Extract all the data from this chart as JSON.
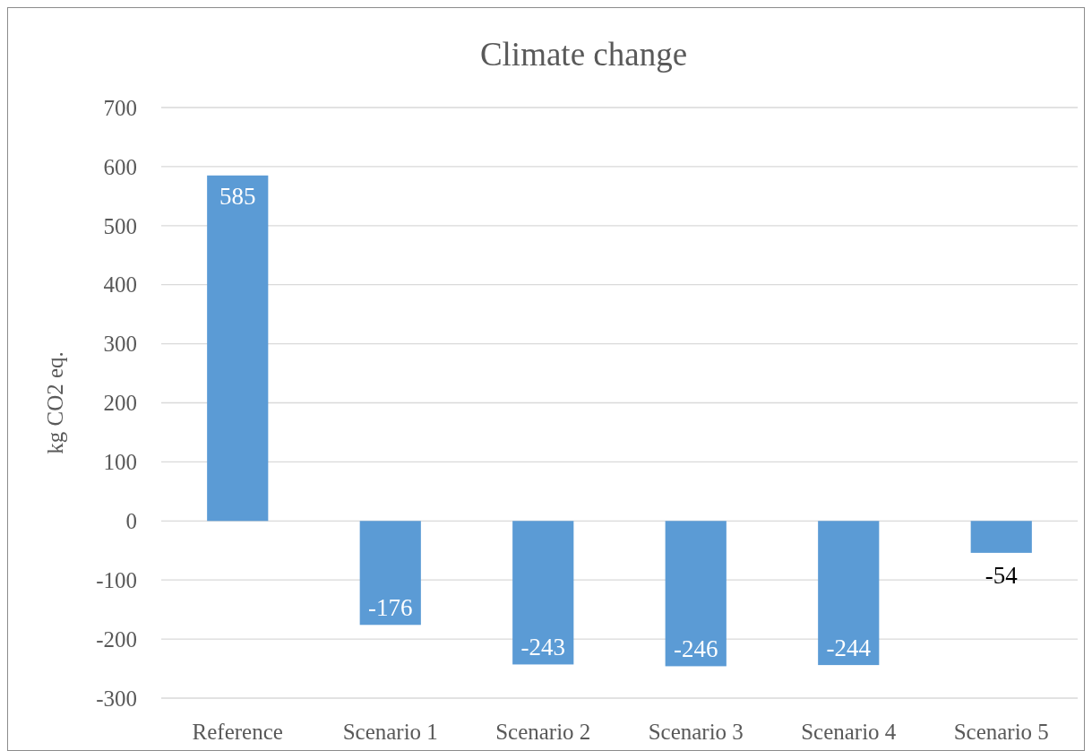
{
  "chart_data": {
    "type": "bar",
    "title": "Climate change",
    "ylabel": "kg CO2 eq.",
    "categories": [
      "Reference",
      "Scenario 1",
      "Scenario 2",
      "Scenario 3",
      "Scenario 4",
      "Scenario 5"
    ],
    "values": [
      585,
      -176,
      -243,
      -246,
      -244,
      -54
    ],
    "color": "#5b9bd5",
    "ylim": [
      -300,
      700
    ],
    "yticks": [
      -300,
      -200,
      -100,
      0,
      100,
      200,
      300,
      400,
      500,
      600,
      700
    ],
    "grid": "y",
    "data_labels": true
  }
}
